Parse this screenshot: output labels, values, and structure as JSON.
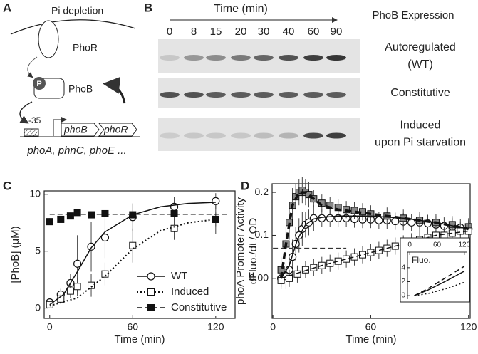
{
  "panel_labels": [
    "A",
    "B",
    "C",
    "D"
  ],
  "panel_a": {
    "stimulus": "Pi depletion",
    "sensor": "PhoR",
    "phospho": "P",
    "regulator": "PhoB",
    "promoter": "-35",
    "genes": [
      "phoB",
      "phoR"
    ],
    "targets": "phoA, phnC, phoE ..."
  },
  "panel_b": {
    "axis_title": "Time  (min)",
    "times": [
      "0",
      "8",
      "15",
      "20",
      "30",
      "40",
      "60",
      "90"
    ],
    "header": "PhoB Expression",
    "rows": [
      [
        "Autoregulated",
        "(WT)"
      ],
      [
        "Constitutive"
      ],
      [
        "Induced",
        "upon Pi starvation"
      ]
    ]
  },
  "chart_data": [
    {
      "type": "scatter",
      "xlabel": "Time (min)",
      "ylabel": [
        "[PhoB] (μM)"
      ],
      "xlim": [
        -4,
        134
      ],
      "ylim": [
        -0.9,
        10.3
      ],
      "xticks": [
        0,
        60,
        120
      ],
      "yticks": [
        0,
        5,
        10
      ],
      "series": [
        {
          "name": "WT",
          "marker": "circle-open",
          "dash": "solid",
          "x": [
            0,
            8,
            15,
            20,
            30,
            40,
            60,
            90,
            120
          ],
          "values": [
            0.5,
            1.2,
            2.2,
            3.9,
            5.4,
            6.2,
            8.0,
            8.9,
            9.4
          ],
          "errors": [
            0.4,
            0.5,
            0.8,
            2.5,
            2.2,
            1.8,
            1.2,
            0.9,
            0.7
          ],
          "fit": {
            "x": [
              0,
              10,
              20,
              30,
              40,
              60,
              80,
              100,
              120
            ],
            "values": [
              0.3,
              1.2,
              3.2,
              5.3,
              6.7,
              8.2,
              8.9,
              9.2,
              9.3
            ]
          }
        },
        {
          "name": "Induced",
          "marker": "square-open",
          "dash": "dotted",
          "x": [
            0,
            8,
            15,
            20,
            30,
            40,
            60,
            90,
            120
          ],
          "values": [
            0.3,
            0.8,
            1.5,
            1.9,
            2.0,
            3.0,
            5.5,
            7.0,
            7.8
          ],
          "errors": [
            0.3,
            0.4,
            0.6,
            0.8,
            1.0,
            1.0,
            1.5,
            1.0,
            1.3
          ],
          "fit": {
            "x": [
              0,
              20,
              40,
              60,
              80,
              100,
              120
            ],
            "values": [
              0.2,
              0.9,
              2.8,
              5.2,
              6.8,
              7.5,
              7.8
            ]
          }
        },
        {
          "name": "Constitutive",
          "marker": "square-filled",
          "dash": "dashed",
          "x": [
            0,
            8,
            15,
            20,
            30,
            40,
            60,
            90,
            120
          ],
          "values": [
            7.6,
            7.8,
            8.1,
            8.4,
            8.2,
            8.3,
            8.2,
            8.3,
            7.8
          ],
          "errors": [
            0.3,
            0.3,
            0.3,
            0.2,
            0.3,
            0.3,
            0.3,
            0.3,
            0.6
          ],
          "fit": {
            "x": [
              0,
              130
            ],
            "values": [
              8.25,
              8.25
            ]
          }
        }
      ]
    },
    {
      "type": "scatter",
      "xlabel": "Time (min)",
      "ylabel": [
        "phoA Promoter Activity",
        "dFluo./dt / OD"
      ],
      "xlim": [
        -0.5,
        121
      ],
      "ylim": [
        -0.093,
        0.22
      ],
      "xticks": [
        0,
        60,
        120
      ],
      "yticks": [
        {
          "value": 0,
          "label": "0.00"
        },
        0.1,
        0.2
      ],
      "series": [
        {
          "name": "WT",
          "marker": "circle-open",
          "dash": "solid",
          "x": [
            5,
            8,
            10,
            12,
            14,
            16,
            18,
            20,
            22,
            25,
            30,
            35,
            40,
            45,
            50,
            55,
            60,
            65,
            70,
            75,
            80,
            85,
            90,
            95,
            100,
            105,
            110,
            115,
            120
          ],
          "values": [
            0,
            0.005,
            0.02,
            0.05,
            0.08,
            0.1,
            0.115,
            0.125,
            0.13,
            0.14,
            0.14,
            0.14,
            0.14,
            0.14,
            0.138,
            0.137,
            0.137,
            0.135,
            0.135,
            0.133,
            0.132,
            0.13,
            0.13,
            0.128,
            0.125,
            0.122,
            0.12,
            0.118,
            0.115
          ],
          "errors": [
            0.02,
            0.03,
            0.03,
            0.04,
            0.04,
            0.04,
            0.04,
            0.03,
            0.03,
            0.03,
            0.02,
            0.02,
            0.02,
            0.02,
            0.02,
            0.02,
            0.02,
            0.02,
            0.02,
            0.02,
            0.02,
            0.02,
            0.02,
            0.02,
            0.02,
            0.02,
            0.02,
            0.02,
            0.02
          ],
          "fit": {
            "x": [
              5,
              10,
              15,
              20,
              25,
              30,
              40,
              60,
              80,
              100,
              120
            ],
            "values": [
              0,
              0.03,
              0.09,
              0.125,
              0.138,
              0.142,
              0.145,
              0.145,
              0.14,
              0.13,
              0.115
            ]
          }
        },
        {
          "name": "Constitutive",
          "marker": "square-gray",
          "dash": "dashed-thick",
          "x": [
            5,
            8,
            10,
            12,
            14,
            16,
            18,
            20,
            22,
            25,
            30,
            35,
            40,
            45,
            50,
            55,
            60,
            70,
            80,
            90,
            100,
            110,
            120
          ],
          "values": [
            0.02,
            0.08,
            0.13,
            0.17,
            0.19,
            0.2,
            0.205,
            0.2,
            0.195,
            0.185,
            0.175,
            0.17,
            0.165,
            0.16,
            0.158,
            0.155,
            0.15,
            0.145,
            0.14,
            0.135,
            0.13,
            0.125,
            0.12
          ],
          "errors": [
            0.03,
            0.04,
            0.04,
            0.04,
            0.03,
            0.03,
            0.03,
            0.03,
            0.03,
            0.02,
            0.02,
            0.02,
            0.02,
            0.02,
            0.02,
            0.02,
            0.02,
            0.02,
            0.02,
            0.02,
            0.02,
            0.02,
            0.02
          ],
          "fit": {
            "x": [
              5,
              8,
              12,
              16,
              20,
              25,
              30,
              40,
              60,
              80,
              100,
              120
            ],
            "values": [
              0,
              0.08,
              0.17,
              0.2,
              0.2,
              0.185,
              0.17,
              0.16,
              0.15,
              0.14,
              0.13,
              0.115
            ]
          }
        },
        {
          "name": "Induced",
          "marker": "square-open",
          "dash": "dashed",
          "x": [
            5,
            10,
            15,
            20,
            25,
            30,
            35,
            40,
            45,
            50,
            55,
            60,
            65,
            70,
            75,
            80,
            85,
            90,
            95,
            100,
            105,
            110,
            115,
            120
          ],
          "values": [
            -0.005,
            0,
            0.01,
            0.02,
            0.025,
            0.03,
            0.035,
            0.04,
            0.045,
            0.05,
            0.055,
            0.06,
            0.065,
            0.07,
            0.075,
            0.08,
            0.085,
            0.09,
            0.095,
            0.1,
            0.1,
            0.105,
            0.11,
            0.11
          ],
          "errors": [
            0.02,
            0.02,
            0.02,
            0.02,
            0.02,
            0.02,
            0.02,
            0.02,
            0.02,
            0.02,
            0.02,
            0.02,
            0.02,
            0.02,
            0.02,
            0.02,
            0.02,
            0.02,
            0.02,
            0.02,
            0.02,
            0.02,
            0.02,
            0.02
          ],
          "fit": {
            "x": [
              5,
              30,
              60,
              80,
              100,
              120
            ],
            "values": [
              0,
              0.03,
              0.06,
              0.08,
              0.1,
              0.11
            ]
          }
        }
      ],
      "reference_line": {
        "x": [
          0,
          45
        ],
        "values": [
          0.07,
          0.07
        ]
      },
      "inset": {
        "label": "Fluo.",
        "xlim": [
          -5,
          125
        ],
        "xticks": [
          0,
          60,
          120
        ],
        "ylim": [
          -0.5,
          4.8
        ],
        "yticks": [
          0,
          2,
          4
        ],
        "series": [
          {
            "dash": "dashed",
            "x": [
              10,
              40,
              80,
              120
            ],
            "values": [
              0,
              1,
              2.6,
              4.2
            ]
          },
          {
            "dash": "solid",
            "x": [
              10,
              40,
              80,
              120
            ],
            "values": [
              0,
              0.8,
              2.1,
              3.5
            ]
          },
          {
            "dash": "dotted",
            "x": [
              10,
              40,
              80,
              120
            ],
            "values": [
              0,
              0.3,
              1,
              1.9
            ]
          }
        ]
      }
    }
  ]
}
